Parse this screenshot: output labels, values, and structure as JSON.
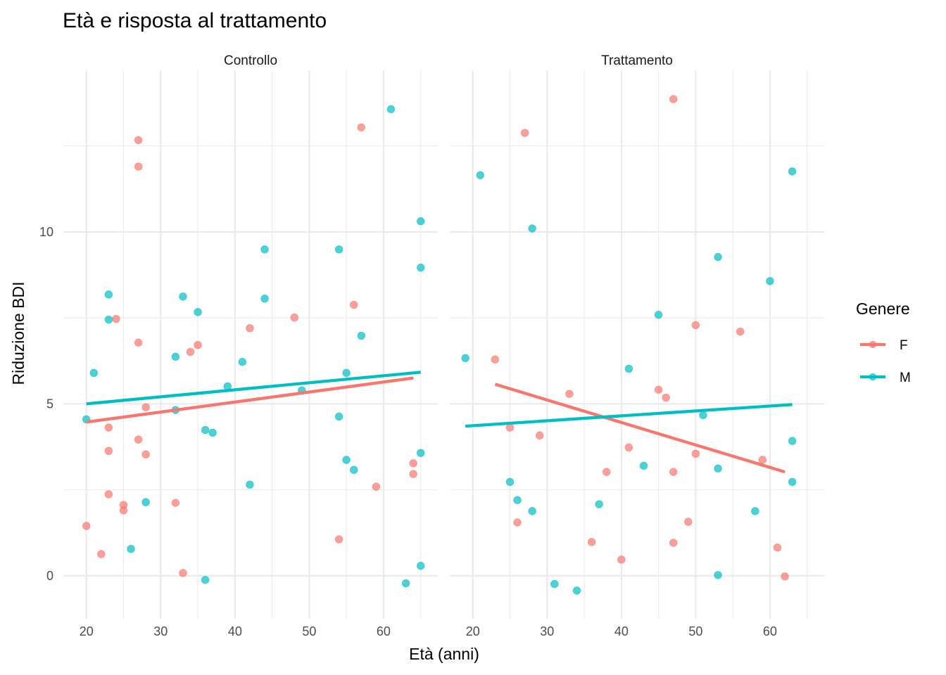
{
  "chart_data": {
    "type": "scatter",
    "title": "Età e risposta al trattamento",
    "xlabel": "Età (anni)",
    "ylabel": "Riduzione BDI",
    "xlim": [
      16.9,
      67.3
    ],
    "ylim": [
      -1.25,
      14.7
    ],
    "x_ticks": [
      20,
      30,
      40,
      50,
      60
    ],
    "y_ticks": [
      0,
      5,
      10
    ],
    "x_minor": [
      25,
      35,
      45,
      55,
      65
    ],
    "y_minor": [
      2.5,
      7.5,
      12.5
    ],
    "grid": true,
    "legend": {
      "title": "Genere",
      "position": "right",
      "entries": [
        {
          "label": "F",
          "color": "#F8766D"
        },
        {
          "label": "M",
          "color": "#00BFC4"
        }
      ]
    },
    "line_colors": {
      "F": "#F8766D",
      "M": "#00BFC4"
    },
    "panels": [
      {
        "label": "Controllo",
        "series": [
          {
            "name": "F",
            "points": [
              [
                27,
                12.67
              ],
              [
                27,
                11.9
              ],
              [
                57,
                13.04
              ],
              [
                24,
                7.47
              ],
              [
                27,
                6.78
              ],
              [
                42,
                7.2
              ],
              [
                48,
                7.51
              ],
              [
                56,
                7.88
              ],
              [
                34,
                6.51
              ],
              [
                35,
                6.71
              ],
              [
                28,
                4.9
              ],
              [
                23,
                4.31
              ],
              [
                27,
                3.96
              ],
              [
                23,
                3.63
              ],
              [
                28,
                3.53
              ],
              [
                23,
                2.37
              ],
              [
                25,
                2.06
              ],
              [
                25,
                1.9
              ],
              [
                32,
                2.12
              ],
              [
                20,
                1.45
              ],
              [
                22,
                0.63
              ],
              [
                33,
                0.08
              ],
              [
                54,
                1.06
              ],
              [
                59,
                2.59
              ],
              [
                64,
                3.27
              ],
              [
                64,
                2.96
              ]
            ],
            "fit": [
              [
                20,
                4.47
              ],
              [
                64,
                5.75
              ]
            ]
          },
          {
            "name": "M",
            "points": [
              [
                61,
                13.57
              ],
              [
                65,
                10.31
              ],
              [
                65,
                8.96
              ],
              [
                44,
                9.49
              ],
              [
                54,
                9.49
              ],
              [
                44,
                8.06
              ],
              [
                33,
                8.12
              ],
              [
                23,
                8.18
              ],
              [
                23,
                7.45
              ],
              [
                35,
                7.67
              ],
              [
                57,
                6.98
              ],
              [
                21,
                5.9
              ],
              [
                32,
                6.37
              ],
              [
                41,
                6.22
              ],
              [
                55,
                5.9
              ],
              [
                39,
                5.51
              ],
              [
                49,
                5.39
              ],
              [
                20,
                4.55
              ],
              [
                32,
                4.82
              ],
              [
                36,
                4.24
              ],
              [
                37,
                4.16
              ],
              [
                54,
                4.63
              ],
              [
                65,
                3.57
              ],
              [
                55,
                3.37
              ],
              [
                56,
                3.08
              ],
              [
                42,
                2.65
              ],
              [
                28,
                2.14
              ],
              [
                26,
                0.78
              ],
              [
                36,
                -0.12
              ],
              [
                63,
                -0.22
              ],
              [
                65,
                0.29
              ]
            ],
            "fit": [
              [
                20,
                5.0
              ],
              [
                65,
                5.92
              ]
            ]
          }
        ]
      },
      {
        "label": "Trattamento",
        "series": [
          {
            "name": "F",
            "points": [
              [
                47,
                13.86
              ],
              [
                27,
                12.88
              ],
              [
                23,
                6.29
              ],
              [
                33,
                5.29
              ],
              [
                45,
                5.41
              ],
              [
                46,
                5.18
              ],
              [
                50,
                7.29
              ],
              [
                56,
                7.1
              ],
              [
                25,
                4.31
              ],
              [
                29,
                4.08
              ],
              [
                41,
                3.73
              ],
              [
                50,
                3.55
              ],
              [
                59,
                3.37
              ],
              [
                38,
                3.02
              ],
              [
                47,
                3.02
              ],
              [
                26,
                1.55
              ],
              [
                49,
                1.57
              ],
              [
                36,
                0.98
              ],
              [
                47,
                0.96
              ],
              [
                40,
                0.47
              ],
              [
                61,
                0.82
              ],
              [
                62,
                -0.02
              ]
            ],
            "fit": [
              [
                23,
                5.57
              ],
              [
                62,
                3.02
              ]
            ]
          },
          {
            "name": "M",
            "points": [
              [
                21,
                11.65
              ],
              [
                63,
                11.76
              ],
              [
                28,
                10.1
              ],
              [
                53,
                9.27
              ],
              [
                60,
                8.57
              ],
              [
                45,
                7.59
              ],
              [
                19,
                6.33
              ],
              [
                41,
                6.02
              ],
              [
                51,
                4.67
              ],
              [
                63,
                3.92
              ],
              [
                43,
                3.2
              ],
              [
                53,
                3.12
              ],
              [
                25,
                2.73
              ],
              [
                63,
                2.73
              ],
              [
                26,
                2.2
              ],
              [
                28,
                1.88
              ],
              [
                37,
                2.08
              ],
              [
                58,
                1.88
              ],
              [
                53,
                0.02
              ],
              [
                31,
                -0.24
              ],
              [
                34,
                -0.43
              ]
            ],
            "fit": [
              [
                19,
                4.35
              ],
              [
                63,
                4.98
              ]
            ]
          }
        ]
      }
    ]
  }
}
